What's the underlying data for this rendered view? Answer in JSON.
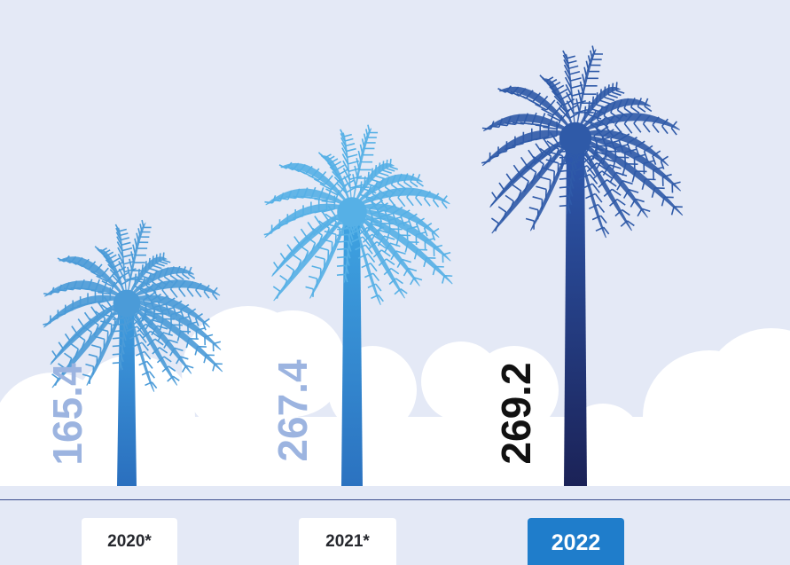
{
  "chart_data": {
    "type": "bar",
    "categories": [
      "2020*",
      "2021*",
      "2022"
    ],
    "values": [
      165.4,
      267.4,
      269.2
    ],
    "data_labels": [
      "165.4",
      "267.4",
      "269.2"
    ],
    "highlighted_category": "2022",
    "colors": {
      "background": "#e4e9f6",
      "cloud": "#ffffff",
      "label_faded": "#9cb4e0",
      "label_highlight": "#111111",
      "trunk_light": "#4aa0e0",
      "trunk_mid": "#2f88d0",
      "trunk_dark": "#1e2a66",
      "year_box_highlight": "#1f7dcb",
      "divider": "#3a4c8c"
    }
  }
}
